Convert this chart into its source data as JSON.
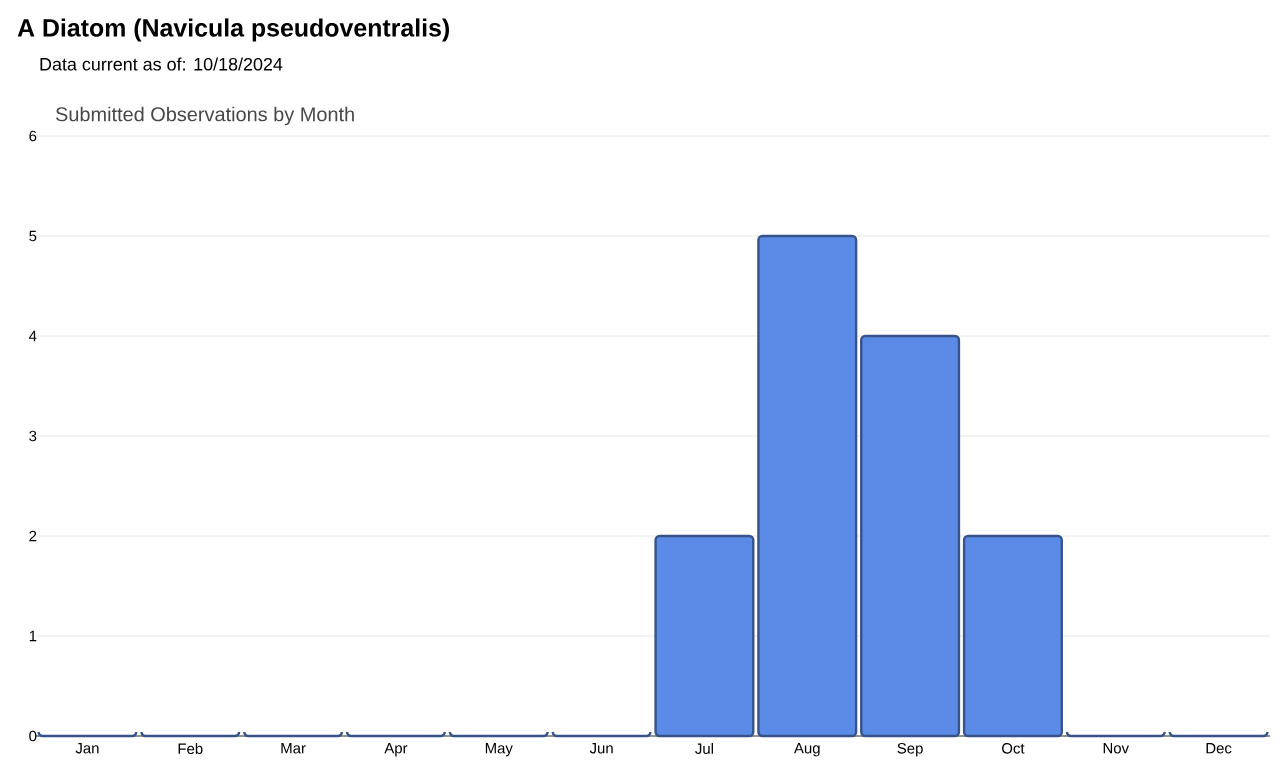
{
  "chart_data": {
    "type": "bar",
    "title": "A Diatom   (Navicula pseudoventralis)",
    "subtitle": "Data current as of: 10/18/2024",
    "annotations": [
      "Submitted Observations by Month"
    ],
    "categories": [
      "Jan",
      "Feb",
      "Mar",
      "Apr",
      "May",
      "Jun",
      "Jul",
      "Aug",
      "Sep",
      "Oct",
      "Nov",
      "Dec"
    ],
    "values": [
      0,
      0,
      0,
      0,
      0,
      0,
      2,
      5,
      4,
      2,
      0,
      0
    ],
    "color": "#5b8be6",
    "ylim": [
      0,
      6
    ],
    "yticks": [
      0,
      1,
      2,
      3,
      4,
      5,
      6
    ],
    "grid": "y"
  }
}
